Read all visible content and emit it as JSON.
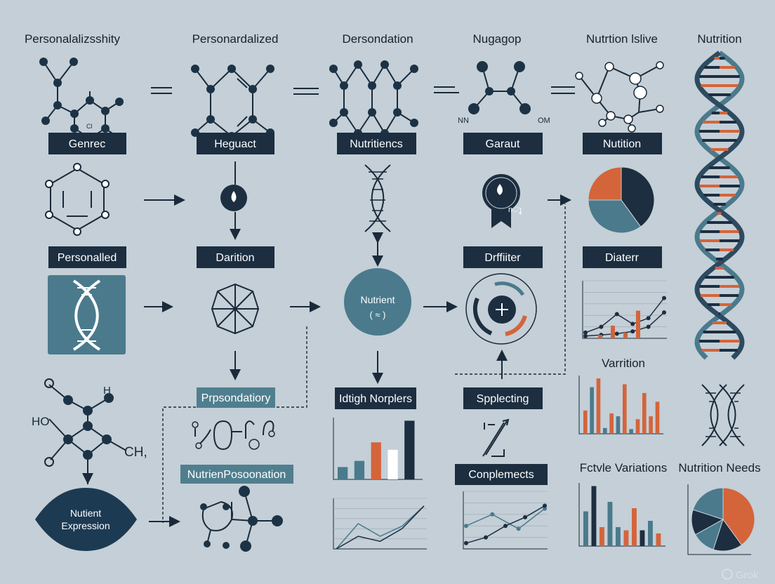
{
  "colors": {
    "background": "#c4cfd7",
    "navy": "#1c2e40",
    "teal": "#4a7a8c",
    "orange": "#d4643a"
  },
  "titles": [
    "Personalalizsshity",
    "Personardalized",
    "Dersondation",
    "Nugagop",
    "Nutrtion lslive",
    "Nutrition"
  ],
  "molecule_labels": {
    "cl": "Cl",
    "nn": "NN",
    "om": "OM",
    "ho": "HO",
    "h": "H",
    "ch": "CH,"
  },
  "labels_row1": [
    "Genrec",
    "Heguact",
    "Nutritiencs",
    "Garaut",
    "Nutition"
  ],
  "labels_row2": [
    "Personalled",
    "Darition",
    "Drffiiter",
    "Diaterr"
  ],
  "nutrient_circle": {
    "title": "Nutrient",
    "symbol": "( ≈ )"
  },
  "badge_text": "nു",
  "labels_row4": [
    "Prpsondatiory",
    "Idtigh Norplers",
    "Spplecting"
  ],
  "section_titles": {
    "variation": "Varrition",
    "lifestyle": "Fctvle Variations",
    "needs": "Nutrition Needs"
  },
  "labels_row5": [
    "NutrienPosoonation",
    "Conplemects"
  ],
  "expression": {
    "line1": "Nutient",
    "line2": "Expression"
  },
  "watermark": "Grok",
  "mini_charts": {
    "diet_line": {
      "type": "line",
      "series": [
        {
          "values": [
            10,
            20,
            42,
            25,
            35,
            70
          ]
        },
        {
          "values": [
            4,
            6,
            8,
            12,
            20,
            45
          ]
        }
      ],
      "bars": [
        6,
        22,
        10,
        48
      ]
    },
    "variation_bars": {
      "type": "bar",
      "series": [
        {
          "color": "teal",
          "values": [
            80,
            10,
            30,
            8
          ]
        },
        {
          "color": "orange",
          "values": [
            40,
            95,
            35,
            85,
            25,
            70,
            30,
            55
          ]
        }
      ]
    },
    "idtigh_bars": {
      "type": "bar",
      "values": [
        20,
        30,
        60,
        48,
        95
      ],
      "colors": [
        "teal",
        "teal",
        "orange",
        "white",
        "navy"
      ]
    },
    "line_a": {
      "type": "line",
      "series": [
        {
          "values": [
            0,
            50,
            25,
            45,
            85
          ]
        },
        {
          "values": [
            0,
            25,
            15,
            40,
            85
          ]
        }
      ]
    },
    "line_b": {
      "type": "line",
      "series": [
        {
          "values": [
            40,
            60,
            35,
            70
          ]
        },
        {
          "values": [
            10,
            20,
            40,
            55,
            75
          ]
        }
      ]
    },
    "lifestyle_bars": {
      "type": "bar",
      "values": [
        55,
        95,
        30,
        70,
        30,
        25,
        60,
        25,
        40,
        20
      ],
      "colors": [
        "teal",
        "navy",
        "orange",
        "teal",
        "teal",
        "orange",
        "orange",
        "navy",
        "teal",
        "orange"
      ]
    },
    "needs_pie": {
      "type": "pie",
      "values": [
        40,
        15,
        12,
        13,
        20
      ],
      "colors": [
        "orange",
        "navy",
        "teal",
        "navy",
        "teal"
      ]
    },
    "diet_pie": {
      "type": "pie",
      "values": [
        40,
        35,
        25
      ],
      "colors": [
        "navy",
        "teal",
        "orange"
      ]
    }
  }
}
